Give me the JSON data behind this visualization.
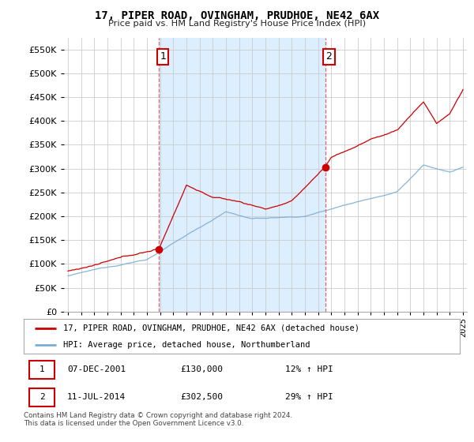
{
  "title": "17, PIPER ROAD, OVINGHAM, PRUDHOE, NE42 6AX",
  "subtitle": "Price paid vs. HM Land Registry's House Price Index (HPI)",
  "legend_line1": "17, PIPER ROAD, OVINGHAM, PRUDHOE, NE42 6AX (detached house)",
  "legend_line2": "HPI: Average price, detached house, Northumberland",
  "transaction1_date": "07-DEC-2001",
  "transaction1_price": "£130,000",
  "transaction1_hpi": "12% ↑ HPI",
  "transaction2_date": "11-JUL-2014",
  "transaction2_price": "£302,500",
  "transaction2_hpi": "29% ↑ HPI",
  "footnote": "Contains HM Land Registry data © Crown copyright and database right 2024.\nThis data is licensed under the Open Government Licence v3.0.",
  "price_color": "#cc0000",
  "hpi_color": "#7aadd4",
  "shade_color": "#ddeeff",
  "vline_color": "#dd6666",
  "background_color": "#ffffff",
  "grid_color": "#cccccc",
  "ylim": [
    0,
    575000
  ],
  "yticks": [
    0,
    50000,
    100000,
    150000,
    200000,
    250000,
    300000,
    350000,
    400000,
    450000,
    500000,
    550000
  ],
  "transaction1_x": 2001.92,
  "transaction1_y": 130000,
  "transaction2_x": 2014.53,
  "transaction2_y": 302500,
  "xmin": 1994.7,
  "xmax": 2025.3
}
